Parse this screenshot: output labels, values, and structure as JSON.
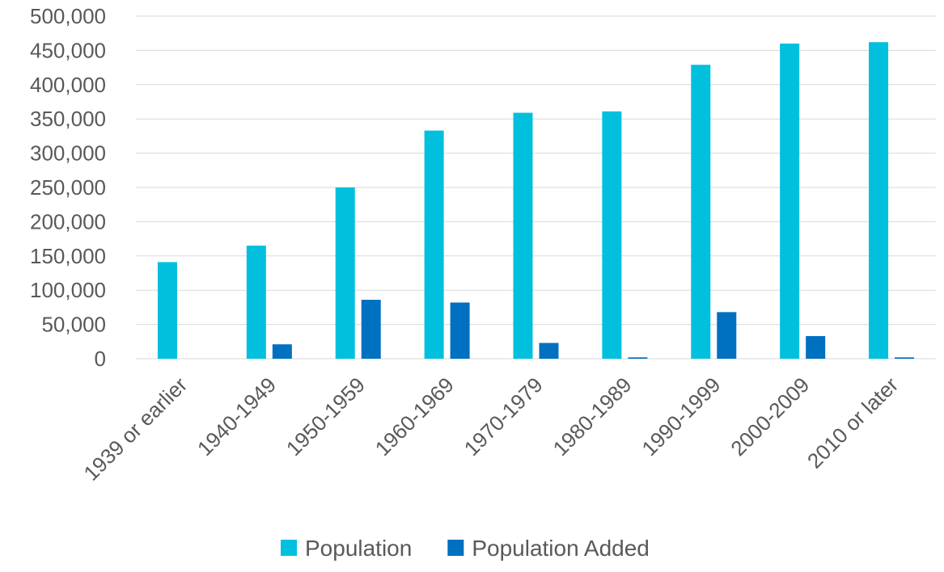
{
  "chart_data": {
    "type": "bar",
    "title": "",
    "xlabel": "",
    "ylabel": "",
    "categories": [
      "1939 or earlier",
      "1940-1949",
      "1950-1959",
      "1960-1969",
      "1970-1979",
      "1980-1989",
      "1990-1999",
      "2000-2009",
      "2010 or later"
    ],
    "series": [
      {
        "name": "Population",
        "color": "#00c0dd",
        "values": [
          141000,
          165000,
          250000,
          333000,
          359000,
          361000,
          429000,
          460000,
          462000
        ]
      },
      {
        "name": "Population Added",
        "color": "#0070c0",
        "values": [
          0,
          21000,
          86000,
          82000,
          23000,
          2000,
          68000,
          33000,
          2000
        ]
      }
    ],
    "ylim": [
      0,
      500000
    ],
    "yticks": [
      "0",
      "50,000",
      "100,000",
      "150,000",
      "200,000",
      "250,000",
      "300,000",
      "350,000",
      "400,000",
      "450,000",
      "500,000"
    ],
    "grid": true,
    "legend_position": "bottom"
  }
}
